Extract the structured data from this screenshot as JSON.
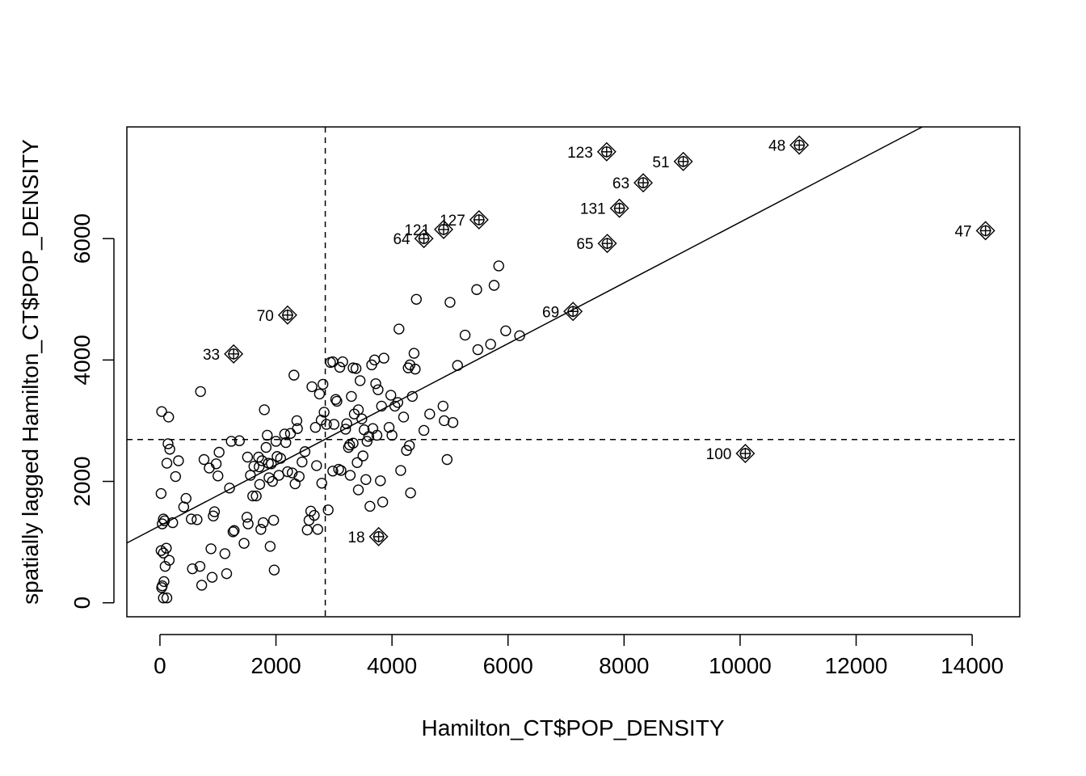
{
  "chart_data": {
    "type": "scatter",
    "title": "",
    "xlabel": "Hamilton_CT$POP_DENSITY",
    "ylabel": "spatially lagged Hamilton_CT$POP_DENSITY",
    "xlim": [
      -570,
      14820
    ],
    "ylim": [
      -230,
      7840
    ],
    "x_ticks": [
      0,
      2000,
      4000,
      6000,
      8000,
      10000,
      12000,
      14000
    ],
    "y_ticks": [
      0,
      2000,
      4000,
      6000
    ],
    "grid": false,
    "legend": "none",
    "mean_x": 2850,
    "mean_y": 2690,
    "regression_line": {
      "intercept": 1270,
      "slope": 0.5
    },
    "points": [
      [
        20,
        1800
      ],
      [
        30,
        3150
      ],
      [
        40,
        1300
      ],
      [
        60,
        1380
      ],
      [
        80,
        1350
      ],
      [
        20,
        860
      ],
      [
        60,
        820
      ],
      [
        110,
        900
      ],
      [
        160,
        700
      ],
      [
        40,
        280
      ],
      [
        70,
        350
      ],
      [
        90,
        600
      ],
      [
        30,
        250
      ],
      [
        60,
        80
      ],
      [
        120,
        80
      ],
      [
        150,
        3060
      ],
      [
        140,
        2620
      ],
      [
        170,
        2530
      ],
      [
        120,
        2300
      ],
      [
        270,
        2080
      ],
      [
        220,
        1320
      ],
      [
        320,
        2340
      ],
      [
        410,
        1580
      ],
      [
        450,
        1720
      ],
      [
        540,
        1380
      ],
      [
        640,
        1370
      ],
      [
        560,
        560
      ],
      [
        690,
        600
      ],
      [
        720,
        290
      ],
      [
        700,
        3480
      ],
      [
        760,
        2360
      ],
      [
        850,
        2220
      ],
      [
        880,
        890
      ],
      [
        900,
        420
      ],
      [
        920,
        1430
      ],
      [
        940,
        1500
      ],
      [
        970,
        2290
      ],
      [
        1000,
        2090
      ],
      [
        1020,
        2480
      ],
      [
        1120,
        810
      ],
      [
        1150,
        480
      ],
      [
        1200,
        1890
      ],
      [
        1230,
        2660
      ],
      [
        1260,
        1170
      ],
      [
        1280,
        1190
      ],
      [
        1370,
        2670
      ],
      [
        1450,
        980
      ],
      [
        1500,
        1410
      ],
      [
        1510,
        2400
      ],
      [
        1560,
        2100
      ],
      [
        1600,
        1760
      ],
      [
        1620,
        2250
      ],
      [
        1660,
        1760
      ],
      [
        1700,
        2400
      ],
      [
        1710,
        2240
      ],
      [
        1720,
        1950
      ],
      [
        1740,
        1210
      ],
      [
        1760,
        2340
      ],
      [
        1780,
        1320
      ],
      [
        1800,
        3180
      ],
      [
        1830,
        2560
      ],
      [
        1850,
        2760
      ],
      [
        1870,
        2300
      ],
      [
        1880,
        2060
      ],
      [
        1900,
        930
      ],
      [
        1920,
        2290
      ],
      [
        1940,
        2000
      ],
      [
        1960,
        1360
      ],
      [
        1970,
        540
      ],
      [
        2000,
        2660
      ],
      [
        2020,
        2410
      ],
      [
        2050,
        2100
      ],
      [
        2080,
        2380
      ],
      [
        2150,
        2780
      ],
      [
        2170,
        2640
      ],
      [
        2200,
        2160
      ],
      [
        2250,
        2790
      ],
      [
        2280,
        2140
      ],
      [
        2310,
        3750
      ],
      [
        2330,
        1960
      ],
      [
        2360,
        3000
      ],
      [
        2370,
        2870
      ],
      [
        2400,
        2080
      ],
      [
        2450,
        2320
      ],
      [
        2500,
        2490
      ],
      [
        2540,
        1200
      ],
      [
        2570,
        1360
      ],
      [
        2600,
        1510
      ],
      [
        2620,
        3560
      ],
      [
        2660,
        1440
      ],
      [
        2680,
        2890
      ],
      [
        2700,
        2260
      ],
      [
        2720,
        1210
      ],
      [
        2750,
        3440
      ],
      [
        2780,
        3010
      ],
      [
        2790,
        1970
      ],
      [
        2810,
        3600
      ],
      [
        2830,
        3140
      ],
      [
        2870,
        2940
      ],
      [
        2900,
        1530
      ],
      [
        2940,
        3960
      ],
      [
        2980,
        2170
      ],
      [
        3000,
        2940
      ],
      [
        3030,
        3350
      ],
      [
        3050,
        3320
      ],
      [
        3080,
        2200
      ],
      [
        3100,
        3880
      ],
      [
        3120,
        2180
      ],
      [
        3150,
        3970
      ],
      [
        3200,
        2860
      ],
      [
        3220,
        2950
      ],
      [
        3250,
        2560
      ],
      [
        3270,
        2600
      ],
      [
        3280,
        2100
      ],
      [
        3300,
        3400
      ],
      [
        3330,
        2630
      ],
      [
        3350,
        3110
      ],
      [
        3380,
        3860
      ],
      [
        3400,
        2310
      ],
      [
        3420,
        3180
      ],
      [
        3450,
        3660
      ],
      [
        3480,
        3030
      ],
      [
        3500,
        2420
      ],
      [
        3520,
        2850
      ],
      [
        3550,
        2030
      ],
      [
        3570,
        2660
      ],
      [
        3600,
        2740
      ],
      [
        3620,
        1590
      ],
      [
        3650,
        3920
      ],
      [
        3670,
        2870
      ],
      [
        3700,
        4000
      ],
      [
        3720,
        3610
      ],
      [
        3740,
        2760
      ],
      [
        3760,
        3510
      ],
      [
        3800,
        2010
      ],
      [
        3820,
        3240
      ],
      [
        3840,
        1660
      ],
      [
        3860,
        4030
      ],
      [
        3950,
        2890
      ],
      [
        3980,
        3420
      ],
      [
        4000,
        2760
      ],
      [
        4050,
        3240
      ],
      [
        4100,
        3300
      ],
      [
        4120,
        4510
      ],
      [
        4150,
        2180
      ],
      [
        4200,
        3060
      ],
      [
        4250,
        2510
      ],
      [
        4280,
        3870
      ],
      [
        4300,
        2590
      ],
      [
        4310,
        3920
      ],
      [
        4320,
        1810
      ],
      [
        4350,
        3400
      ],
      [
        4380,
        4110
      ],
      [
        4400,
        3850
      ],
      [
        4420,
        5000
      ],
      [
        4550,
        2840
      ],
      [
        4650,
        3110
      ],
      [
        4880,
        3240
      ],
      [
        4900,
        3000
      ],
      [
        4950,
        2360
      ],
      [
        5000,
        4950
      ],
      [
        5050,
        2970
      ],
      [
        5130,
        3910
      ],
      [
        5260,
        4410
      ],
      [
        5460,
        5160
      ],
      [
        5480,
        4170
      ],
      [
        5700,
        4260
      ],
      [
        5760,
        5230
      ],
      [
        5840,
        5550
      ],
      [
        5960,
        4480
      ],
      [
        6200,
        4400
      ],
      [
        3420,
        1860
      ],
      [
        1520,
        1300
      ],
      [
        2980,
        3970
      ],
      [
        3330,
        3870
      ]
    ],
    "labeled_points": [
      {
        "label": "123",
        "x": 7700,
        "y": 7430
      },
      {
        "label": "48",
        "x": 11020,
        "y": 7540
      },
      {
        "label": "51",
        "x": 9020,
        "y": 7270
      },
      {
        "label": "63",
        "x": 8330,
        "y": 6920
      },
      {
        "label": "131",
        "x": 7920,
        "y": 6500
      },
      {
        "label": "127",
        "x": 5500,
        "y": 6310
      },
      {
        "label": "121",
        "x": 4890,
        "y": 6150
      },
      {
        "label": "64",
        "x": 4550,
        "y": 6000
      },
      {
        "label": "65",
        "x": 7710,
        "y": 5920
      },
      {
        "label": "47",
        "x": 14230,
        "y": 6130
      },
      {
        "label": "69",
        "x": 7120,
        "y": 4800
      },
      {
        "label": "70",
        "x": 2200,
        "y": 4740
      },
      {
        "label": "33",
        "x": 1270,
        "y": 4100
      },
      {
        "label": "100",
        "x": 10090,
        "y": 2460
      },
      {
        "label": "18",
        "x": 3770,
        "y": 1090
      }
    ]
  }
}
